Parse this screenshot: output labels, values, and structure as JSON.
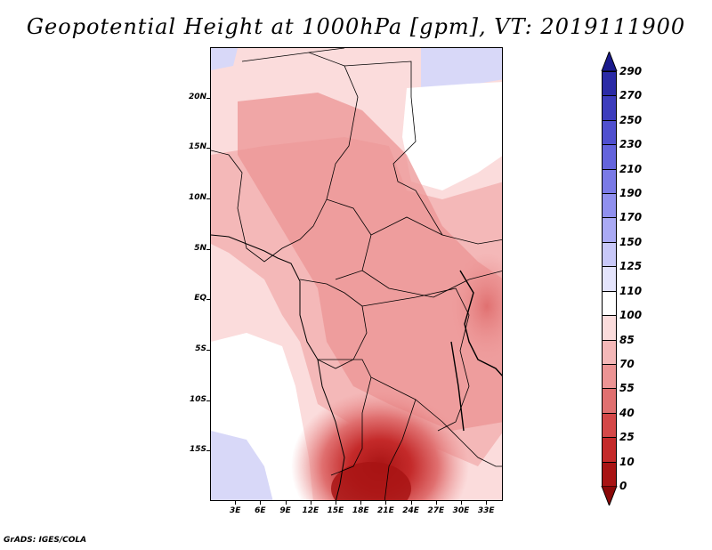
{
  "title": "Geopotential Height at 1000hPa [gpm], VT: 2019111900",
  "footer": "GrADS: IGES/COLA",
  "map": {
    "lat_labels": [
      "20N",
      "15N",
      "10N",
      "5N",
      "EQ",
      "5S",
      "10S",
      "15S"
    ],
    "lat_values": [
      20,
      15,
      10,
      5,
      0,
      -5,
      -10,
      -15
    ],
    "lon_labels": [
      "3E",
      "6E",
      "9E",
      "12E",
      "15E",
      "18E",
      "21E",
      "24E",
      "27E",
      "30E",
      "33E"
    ],
    "lon_values": [
      3,
      6,
      9,
      12,
      15,
      18,
      21,
      24,
      27,
      30,
      33
    ],
    "extent": {
      "lon_min": 0,
      "lon_max": 35,
      "lat_min": -20,
      "lat_max": 25
    }
  },
  "colorbar": {
    "labels": [
      "290",
      "270",
      "250",
      "230",
      "210",
      "190",
      "170",
      "150",
      "125",
      "110",
      "100",
      "85",
      "70",
      "55",
      "40",
      "25",
      "10",
      "0"
    ],
    "colors": [
      "#1a1a8c",
      "#2b2ba6",
      "#3d3dbd",
      "#5050cf",
      "#6464dc",
      "#7a7ae6",
      "#9090ee",
      "#aaaaf4",
      "#c8c8f8",
      "#e4e4fc",
      "#ffffff",
      "#fbdcdc",
      "#f4b8b8",
      "#ec9494",
      "#e07070",
      "#d44848",
      "#c42a2a",
      "#a81414",
      "#8a0808"
    ]
  },
  "colors": {
    "ocean_light": "#fbdcdc",
    "land_base": "#f4b8b8",
    "land_mid": "#ec9494",
    "low_core": "#c42a2a",
    "blue_corner": "#c8c8f8"
  }
}
